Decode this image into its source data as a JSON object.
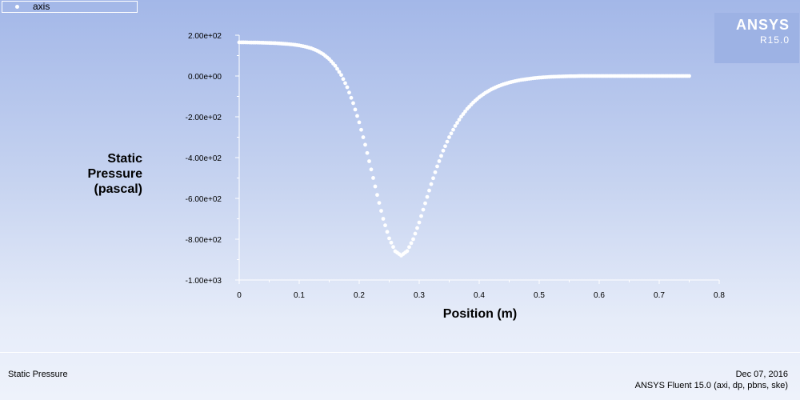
{
  "legend": {
    "label": "axis"
  },
  "logo": {
    "name": "ANSYS",
    "version": "R15.0"
  },
  "footer": {
    "plot_name": "Static Pressure",
    "date": "Dec 07, 2016",
    "solver": "ANSYS Fluent 15.0 (axi, dp, pbns, ske)"
  },
  "colors": {
    "marker": "#ffffff",
    "axis": "#ffffff"
  },
  "chart_data": {
    "type": "scatter",
    "xlabel": "Position (m)",
    "ylabel_lines": [
      "Static",
      "Pressure",
      "(pascal)"
    ],
    "xlim": [
      0,
      0.8
    ],
    "ylim": [
      -1000,
      200
    ],
    "x_ticks": [
      0,
      0.1,
      0.2,
      0.3,
      0.4,
      0.5,
      0.6,
      0.7,
      0.8
    ],
    "x_tick_labels": [
      "0",
      "0.1",
      "0.2",
      "0.3",
      "0.4",
      "0.5",
      "0.6",
      "0.7",
      "0.8"
    ],
    "y_ticks": [
      200,
      0,
      -200,
      -400,
      -600,
      -800,
      -1000
    ],
    "y_tick_labels": [
      "2.00e+02",
      "0.00e+00",
      "-2.00e+02",
      "-4.00e+02",
      "-6.00e+02",
      "-8.00e+02",
      "-1.00e+03"
    ],
    "grid": false,
    "legend_position": "top-left",
    "series": [
      {
        "name": "axis",
        "x": [
          0.0,
          0.01,
          0.02,
          0.03,
          0.04,
          0.05,
          0.06,
          0.07,
          0.08,
          0.09,
          0.1,
          0.11,
          0.12,
          0.13,
          0.14,
          0.15,
          0.16,
          0.17,
          0.18,
          0.19,
          0.2,
          0.21,
          0.22,
          0.23,
          0.24,
          0.25,
          0.26,
          0.27,
          0.28,
          0.29,
          0.3,
          0.31,
          0.32,
          0.33,
          0.34,
          0.35,
          0.36,
          0.37,
          0.38,
          0.39,
          0.4,
          0.41,
          0.42,
          0.43,
          0.44,
          0.45,
          0.46,
          0.47,
          0.48,
          0.49,
          0.5,
          0.51,
          0.52,
          0.53,
          0.54,
          0.55,
          0.56,
          0.57,
          0.58,
          0.59,
          0.6,
          0.61,
          0.62,
          0.63,
          0.64,
          0.65,
          0.66,
          0.67,
          0.68,
          0.69,
          0.7,
          0.71,
          0.72,
          0.73,
          0.74,
          0.75
        ],
        "y": [
          165,
          165,
          164,
          164,
          163,
          162,
          161,
          159,
          157,
          154,
          150,
          144,
          136,
          124,
          107,
          83,
          50,
          5,
          -55,
          -133,
          -227,
          -337,
          -458,
          -583,
          -700,
          -796,
          -859,
          -880,
          -858,
          -800,
          -718,
          -624,
          -530,
          -443,
          -366,
          -300,
          -245,
          -199,
          -161,
          -130,
          -104,
          -83,
          -66,
          -52,
          -41,
          -32,
          -25,
          -19,
          -15,
          -11,
          -8,
          -6,
          -4,
          -3,
          -2,
          -1,
          -1,
          0,
          0,
          0,
          0,
          0,
          0,
          0,
          0,
          0,
          0,
          0,
          0,
          0,
          0,
          0,
          0,
          0,
          0,
          0
        ]
      }
    ]
  }
}
